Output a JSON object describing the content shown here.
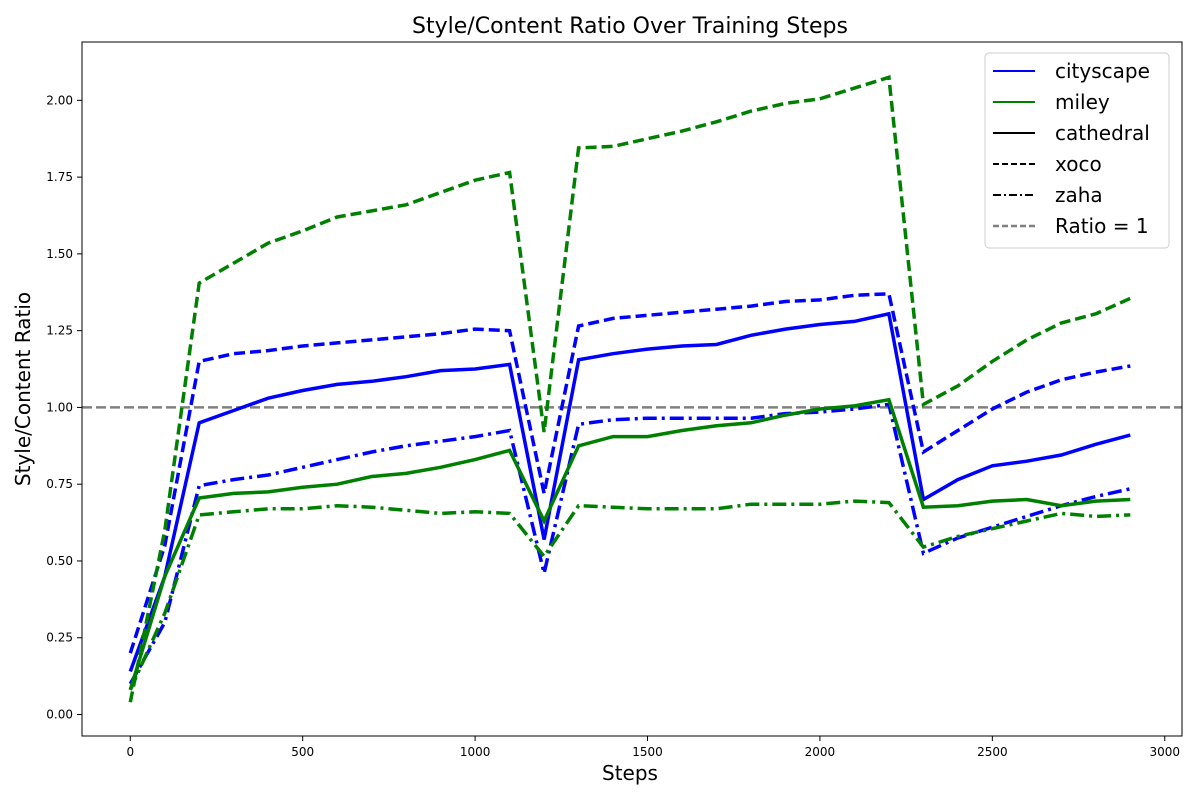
{
  "chart_data": {
    "type": "line",
    "title": "Style/Content Ratio Over Training Steps",
    "xlabel": "Steps",
    "ylabel": "Style/Content Ratio",
    "xlim": [
      -140,
      3050
    ],
    "ylim": [
      -0.07,
      2.19
    ],
    "xticks": [
      0,
      500,
      1000,
      1500,
      2000,
      2500,
      3000
    ],
    "xtick_labels": [
      "0",
      "500",
      "1000",
      "1500",
      "2000",
      "2500",
      "3000"
    ],
    "yticks": [
      0,
      0.25,
      0.5,
      0.75,
      1.0,
      1.25,
      1.5,
      1.75,
      2.0
    ],
    "ytick_labels": [
      "0.00",
      "0.25",
      "0.50",
      "0.75",
      "1.00",
      "1.25",
      "1.50",
      "1.75",
      "2.00"
    ],
    "grid": false,
    "legend_position": "top-right",
    "legend": [
      {
        "label": "cityscape",
        "color": "#0000ff",
        "dash": "solid",
        "kind": "line"
      },
      {
        "label": "miley",
        "color": "#008000",
        "dash": "solid",
        "kind": "line"
      },
      {
        "label": "cathedral",
        "color": "#000000",
        "dash": "solid",
        "kind": "line"
      },
      {
        "label": "xoco",
        "color": "#000000",
        "dash": "dashed",
        "kind": "line"
      },
      {
        "label": "zaha",
        "color": "#000000",
        "dash": "dashdot",
        "kind": "line"
      },
      {
        "label": "Ratio = 1",
        "color": "#808080",
        "dash": "dashed",
        "kind": "ref"
      }
    ],
    "reference_line": {
      "y": 1.0,
      "color": "#808080"
    },
    "x": [
      0,
      100,
      200,
      300,
      400,
      500,
      600,
      700,
      800,
      900,
      1000,
      1100,
      1200,
      1300,
      1400,
      1500,
      1600,
      1700,
      1800,
      1900,
      2000,
      2100,
      2200,
      2300,
      2400,
      2500,
      2600,
      2700,
      2800,
      2900
    ],
    "series": [
      {
        "color": "#0000ff",
        "dash": "solid",
        "values": [
          0.14,
          0.45,
          0.95,
          0.99,
          1.03,
          1.055,
          1.075,
          1.085,
          1.1,
          1.12,
          1.125,
          1.14,
          0.57,
          1.155,
          1.175,
          1.19,
          1.2,
          1.205,
          1.235,
          1.255,
          1.27,
          1.28,
          1.305,
          0.7,
          0.765,
          0.81,
          0.825,
          0.845,
          0.88,
          0.91
        ]
      },
      {
        "color": "#0000ff",
        "dash": "dashed",
        "values": [
          0.2,
          0.55,
          1.15,
          1.175,
          1.185,
          1.2,
          1.21,
          1.22,
          1.23,
          1.24,
          1.255,
          1.25,
          0.72,
          1.265,
          1.29,
          1.3,
          1.31,
          1.32,
          1.33,
          1.345,
          1.35,
          1.365,
          1.37,
          0.855,
          0.925,
          0.995,
          1.05,
          1.09,
          1.115,
          1.135
        ]
      },
      {
        "color": "#0000ff",
        "dash": "dashdot",
        "values": [
          0.1,
          0.3,
          0.745,
          0.765,
          0.78,
          0.805,
          0.83,
          0.855,
          0.875,
          0.89,
          0.905,
          0.925,
          0.46,
          0.945,
          0.96,
          0.965,
          0.965,
          0.965,
          0.965,
          0.98,
          0.985,
          0.995,
          1.01,
          0.525,
          0.575,
          0.61,
          0.645,
          0.68,
          0.71,
          0.735
        ]
      },
      {
        "color": "#008000",
        "dash": "solid",
        "values": [
          0.08,
          0.45,
          0.705,
          0.72,
          0.725,
          0.74,
          0.75,
          0.775,
          0.785,
          0.805,
          0.83,
          0.86,
          0.63,
          0.875,
          0.905,
          0.905,
          0.925,
          0.94,
          0.95,
          0.975,
          0.995,
          1.005,
          1.025,
          0.675,
          0.68,
          0.695,
          0.7,
          0.68,
          0.695,
          0.7
        ]
      },
      {
        "color": "#008000",
        "dash": "dashed",
        "values": [
          0.04,
          0.6,
          1.405,
          1.47,
          1.535,
          1.575,
          1.62,
          1.64,
          1.66,
          1.7,
          1.74,
          1.765,
          0.92,
          1.845,
          1.85,
          1.875,
          1.9,
          1.93,
          1.965,
          1.99,
          2.005,
          2.04,
          2.075,
          1.01,
          1.07,
          1.15,
          1.22,
          1.275,
          1.305,
          1.355
        ]
      },
      {
        "color": "#008000",
        "dash": "dashdot",
        "values": [
          0.08,
          0.33,
          0.65,
          0.66,
          0.67,
          0.67,
          0.68,
          0.675,
          0.665,
          0.655,
          0.66,
          0.655,
          0.515,
          0.68,
          0.675,
          0.67,
          0.67,
          0.67,
          0.685,
          0.685,
          0.685,
          0.695,
          0.69,
          0.545,
          0.58,
          0.605,
          0.63,
          0.655,
          0.645,
          0.65
        ]
      }
    ]
  }
}
